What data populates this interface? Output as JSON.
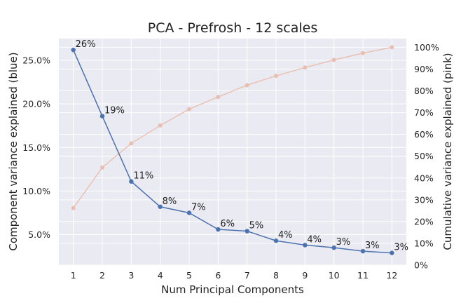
{
  "chart_data": {
    "type": "line",
    "title": "PCA - Prefrosh - 12 scales",
    "xlabel": "Num Principal Components",
    "ylabel_left": "Component variance explained (blue)",
    "ylabel_right": "Cumulative variance explained (pink)",
    "x": [
      1,
      2,
      3,
      4,
      5,
      6,
      7,
      8,
      9,
      10,
      11,
      12
    ],
    "x_ticks": [
      "1",
      "2",
      "3",
      "4",
      "5",
      "6",
      "7",
      "8",
      "9",
      "10",
      "11",
      "12"
    ],
    "y_left_ticks": [
      "5.0%",
      "10.0%",
      "15.0%",
      "20.0%",
      "25.0%"
    ],
    "y_left_tick_values": [
      5,
      10,
      15,
      20,
      25
    ],
    "y_right_ticks": [
      "0%",
      "10%",
      "20%",
      "30%",
      "40%",
      "50%",
      "60%",
      "70%",
      "80%",
      "90%",
      "100%"
    ],
    "y_right_tick_values": [
      0,
      10,
      20,
      30,
      40,
      50,
      60,
      70,
      80,
      90,
      100
    ],
    "ylim_left": [
      1.5,
      27.5
    ],
    "ylim_right": [
      0,
      104
    ],
    "grid": true,
    "series": [
      {
        "axis": "left",
        "color": "#4c72b0",
        "values": [
          26.2,
          18.6,
          11.1,
          8.2,
          7.5,
          5.6,
          5.4,
          4.3,
          3.8,
          3.5,
          3.1,
          2.9
        ],
        "data_labels": [
          "26%",
          "19%",
          "11%",
          "8%",
          "7%",
          "6%",
          "5%",
          "4%",
          "4%",
          "3%",
          "3%",
          "3%"
        ]
      },
      {
        "axis": "right",
        "color": "#e8bfb0",
        "values": [
          26.2,
          44.8,
          55.9,
          64.1,
          71.6,
          77.2,
          82.6,
          86.9,
          90.7,
          94.2,
          97.3,
          100.0
        ]
      }
    ]
  }
}
